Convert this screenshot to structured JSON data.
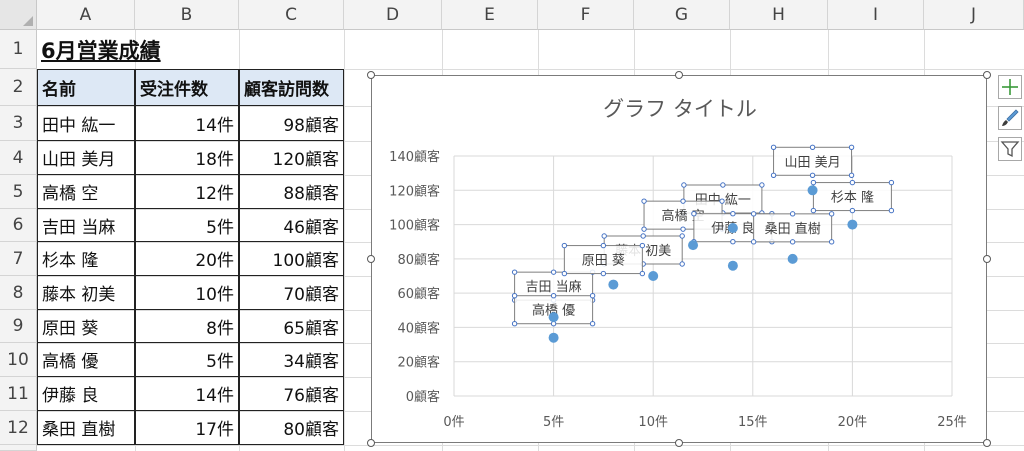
{
  "columns": [
    "A",
    "B",
    "C",
    "D",
    "E",
    "F",
    "G",
    "H",
    "I",
    "J"
  ],
  "rows": [
    "1",
    "2",
    "3",
    "4",
    "5",
    "6",
    "7",
    "8",
    "9",
    "10",
    "11",
    "12"
  ],
  "sheet_title": "6月営業成績",
  "table": {
    "headers": [
      "名前",
      "受注件数",
      "顧客訪問数"
    ],
    "rows": [
      [
        "田中 紘一",
        "14件",
        "98顧客"
      ],
      [
        "山田 美月",
        "18件",
        "120顧客"
      ],
      [
        "高橋 空",
        "12件",
        "88顧客"
      ],
      [
        "吉田 当麻",
        "5件",
        "46顧客"
      ],
      [
        "杉本 隆",
        "20件",
        "100顧客"
      ],
      [
        "藤本 初美",
        "10件",
        "70顧客"
      ],
      [
        "原田 葵",
        "8件",
        "65顧客"
      ],
      [
        "高橋 優",
        "5件",
        "34顧客"
      ],
      [
        "伊藤 良",
        "14件",
        "76顧客"
      ],
      [
        "桑田 直樹",
        "17件",
        "80顧客"
      ]
    ]
  },
  "chart_buttons": {
    "add_element": "plus-icon",
    "style": "brush-icon",
    "filter": "filter-icon"
  },
  "chart_data": {
    "type": "scatter",
    "title": "グラフ タイトル",
    "xlabel": "",
    "ylabel": "",
    "xlim": [
      0,
      25
    ],
    "ylim": [
      0,
      140
    ],
    "x_ticks": [
      0,
      5,
      10,
      15,
      20,
      25
    ],
    "y_ticks": [
      0,
      20,
      40,
      60,
      80,
      100,
      120,
      140
    ],
    "x_tick_labels": [
      "0件",
      "5件",
      "10件",
      "15件",
      "20件",
      "25件"
    ],
    "y_tick_labels": [
      "0顧客",
      "20顧客",
      "40顧客",
      "60顧客",
      "80顧客",
      "100顧客",
      "120顧客",
      "140顧客"
    ],
    "grid": true,
    "point_color": "#5b9bd5",
    "points": [
      {
        "x": 14,
        "y": 98,
        "label": "田中 紘一"
      },
      {
        "x": 18,
        "y": 120,
        "label": "山田 美月"
      },
      {
        "x": 12,
        "y": 88,
        "label": "高橋 空"
      },
      {
        "x": 5,
        "y": 46,
        "label": "吉田 当麻"
      },
      {
        "x": 20,
        "y": 100,
        "label": "杉本 隆"
      },
      {
        "x": 10,
        "y": 70,
        "label": "藤本 初美"
      },
      {
        "x": 8,
        "y": 65,
        "label": "原田 葵"
      },
      {
        "x": 5,
        "y": 34,
        "label": "高橋 優"
      },
      {
        "x": 14,
        "y": 76,
        "label": "伊藤 良"
      },
      {
        "x": 17,
        "y": 80,
        "label": "桑田 直樹"
      }
    ]
  }
}
